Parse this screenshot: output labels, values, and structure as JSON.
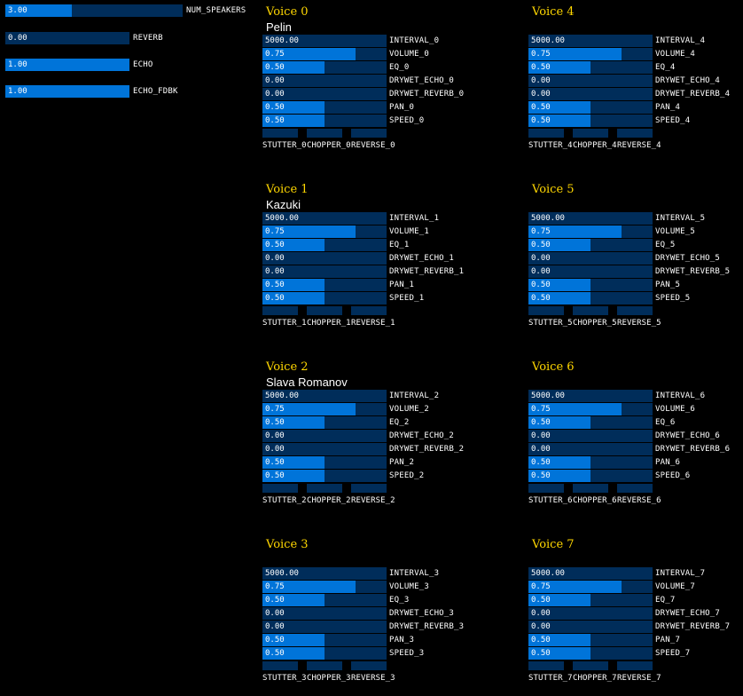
{
  "colors": {
    "background": "#000000",
    "slider_track": "#002d5a",
    "slider_fill": "#0074d9",
    "title": "#ffd700"
  },
  "global": [
    {
      "label": "NUM_SPEAKERS",
      "value": "3.00",
      "fraction": 0.375
    },
    {
      "label": "REVERB",
      "value": "0.00",
      "fraction": 0
    },
    {
      "label": "ECHO",
      "value": "1.00",
      "fraction": 1
    },
    {
      "label": "ECHO_FDBK",
      "value": "1.00",
      "fraction": 1
    }
  ],
  "voices": [
    {
      "title": "Voice 0",
      "speaker": "Pelin",
      "sliders": [
        {
          "label": "INTERVAL_0",
          "value": "5000.00",
          "fraction": 0
        },
        {
          "label": "VOLUME_0",
          "value": "0.75",
          "fraction": 0.75
        },
        {
          "label": "EQ_0",
          "value": "0.50",
          "fraction": 0.5
        },
        {
          "label": "DRYWET_ECHO_0",
          "value": "0.00",
          "fraction": 0
        },
        {
          "label": "DRYWET_REVERB_0",
          "value": "0.00",
          "fraction": 0
        },
        {
          "label": "PAN_0",
          "value": "0.50",
          "fraction": 0.5
        },
        {
          "label": "SPEED_0",
          "value": "0.50",
          "fraction": 0.5
        }
      ],
      "toggles": [
        "STUTTER_0",
        "CHOPPER_0",
        "REVERSE_0"
      ]
    },
    {
      "title": "Voice 1",
      "speaker": "Kazuki",
      "sliders": [
        {
          "label": "INTERVAL_1",
          "value": "5000.00",
          "fraction": 0
        },
        {
          "label": "VOLUME_1",
          "value": "0.75",
          "fraction": 0.75
        },
        {
          "label": "EQ_1",
          "value": "0.50",
          "fraction": 0.5
        },
        {
          "label": "DRYWET_ECHO_1",
          "value": "0.00",
          "fraction": 0
        },
        {
          "label": "DRYWET_REVERB_1",
          "value": "0.00",
          "fraction": 0
        },
        {
          "label": "PAN_1",
          "value": "0.50",
          "fraction": 0.5
        },
        {
          "label": "SPEED_1",
          "value": "0.50",
          "fraction": 0.5
        }
      ],
      "toggles": [
        "STUTTER_1",
        "CHOPPER_1",
        "REVERSE_1"
      ]
    },
    {
      "title": "Voice 2",
      "speaker": "Slava Romanov",
      "sliders": [
        {
          "label": "INTERVAL_2",
          "value": "5000.00",
          "fraction": 0
        },
        {
          "label": "VOLUME_2",
          "value": "0.75",
          "fraction": 0.75
        },
        {
          "label": "EQ_2",
          "value": "0.50",
          "fraction": 0.5
        },
        {
          "label": "DRYWET_ECHO_2",
          "value": "0.00",
          "fraction": 0
        },
        {
          "label": "DRYWET_REVERB_2",
          "value": "0.00",
          "fraction": 0
        },
        {
          "label": "PAN_2",
          "value": "0.50",
          "fraction": 0.5
        },
        {
          "label": "SPEED_2",
          "value": "0.50",
          "fraction": 0.5
        }
      ],
      "toggles": [
        "STUTTER_2",
        "CHOPPER_2",
        "REVERSE_2"
      ]
    },
    {
      "title": "Voice 3",
      "speaker": "",
      "sliders": [
        {
          "label": "INTERVAL_3",
          "value": "5000.00",
          "fraction": 0
        },
        {
          "label": "VOLUME_3",
          "value": "0.75",
          "fraction": 0.75
        },
        {
          "label": "EQ_3",
          "value": "0.50",
          "fraction": 0.5
        },
        {
          "label": "DRYWET_ECHO_3",
          "value": "0.00",
          "fraction": 0
        },
        {
          "label": "DRYWET_REVERB_3",
          "value": "0.00",
          "fraction": 0
        },
        {
          "label": "PAN_3",
          "value": "0.50",
          "fraction": 0.5
        },
        {
          "label": "SPEED_3",
          "value": "0.50",
          "fraction": 0.5
        }
      ],
      "toggles": [
        "STUTTER_3",
        "CHOPPER_3",
        "REVERSE_3"
      ]
    },
    {
      "title": "Voice 4",
      "speaker": "",
      "sliders": [
        {
          "label": "INTERVAL_4",
          "value": "5000.00",
          "fraction": 0
        },
        {
          "label": "VOLUME_4",
          "value": "0.75",
          "fraction": 0.75
        },
        {
          "label": "EQ_4",
          "value": "0.50",
          "fraction": 0.5
        },
        {
          "label": "DRYWET_ECHO_4",
          "value": "0.00",
          "fraction": 0
        },
        {
          "label": "DRYWET_REVERB_4",
          "value": "0.00",
          "fraction": 0
        },
        {
          "label": "PAN_4",
          "value": "0.50",
          "fraction": 0.5
        },
        {
          "label": "SPEED_4",
          "value": "0.50",
          "fraction": 0.5
        }
      ],
      "toggles": [
        "STUTTER_4",
        "CHOPPER_4",
        "REVERSE_4"
      ]
    },
    {
      "title": "Voice 5",
      "speaker": "",
      "sliders": [
        {
          "label": "INTERVAL_5",
          "value": "5000.00",
          "fraction": 0
        },
        {
          "label": "VOLUME_5",
          "value": "0.75",
          "fraction": 0.75
        },
        {
          "label": "EQ_5",
          "value": "0.50",
          "fraction": 0.5
        },
        {
          "label": "DRYWET_ECHO_5",
          "value": "0.00",
          "fraction": 0
        },
        {
          "label": "DRYWET_REVERB_5",
          "value": "0.00",
          "fraction": 0
        },
        {
          "label": "PAN_5",
          "value": "0.50",
          "fraction": 0.5
        },
        {
          "label": "SPEED_5",
          "value": "0.50",
          "fraction": 0.5
        }
      ],
      "toggles": [
        "STUTTER_5",
        "CHOPPER_5",
        "REVERSE_5"
      ]
    },
    {
      "title": "Voice 6",
      "speaker": "",
      "sliders": [
        {
          "label": "INTERVAL_6",
          "value": "5000.00",
          "fraction": 0
        },
        {
          "label": "VOLUME_6",
          "value": "0.75",
          "fraction": 0.75
        },
        {
          "label": "EQ_6",
          "value": "0.50",
          "fraction": 0.5
        },
        {
          "label": "DRYWET_ECHO_6",
          "value": "0.00",
          "fraction": 0
        },
        {
          "label": "DRYWET_REVERB_6",
          "value": "0.00",
          "fraction": 0
        },
        {
          "label": "PAN_6",
          "value": "0.50",
          "fraction": 0.5
        },
        {
          "label": "SPEED_6",
          "value": "0.50",
          "fraction": 0.5
        }
      ],
      "toggles": [
        "STUTTER_6",
        "CHOPPER_6",
        "REVERSE_6"
      ]
    },
    {
      "title": "Voice 7",
      "speaker": "",
      "sliders": [
        {
          "label": "INTERVAL_7",
          "value": "5000.00",
          "fraction": 0
        },
        {
          "label": "VOLUME_7",
          "value": "0.75",
          "fraction": 0.75
        },
        {
          "label": "EQ_7",
          "value": "0.50",
          "fraction": 0.5
        },
        {
          "label": "DRYWET_ECHO_7",
          "value": "0.00",
          "fraction": 0
        },
        {
          "label": "DRYWET_REVERB_7",
          "value": "0.00",
          "fraction": 0
        },
        {
          "label": "PAN_7",
          "value": "0.50",
          "fraction": 0.5
        },
        {
          "label": "SPEED_7",
          "value": "0.50",
          "fraction": 0.5
        }
      ],
      "toggles": [
        "STUTTER_7",
        "CHOPPER_7",
        "REVERSE_7"
      ]
    }
  ]
}
